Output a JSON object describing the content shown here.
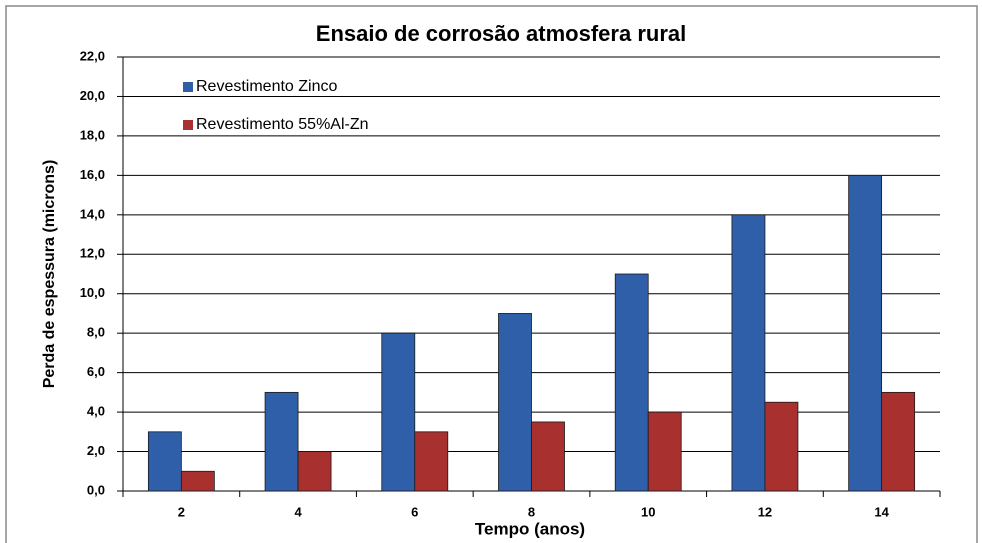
{
  "chart_data": {
    "type": "bar",
    "title": "Ensaio de corrosão atmosfera rural",
    "x_label": "Tempo (anos)",
    "y_label": "Perda de espessura (microns)",
    "categories": [
      "2",
      "4",
      "6",
      "8",
      "10",
      "12",
      "14"
    ],
    "series": [
      {
        "name": "Revestimento Zinco",
        "color": "#2e5fa8",
        "values": [
          3,
          5,
          8,
          9,
          11,
          14,
          16
        ]
      },
      {
        "name": "Revestimento 55%Al-Zn",
        "color": "#a8302e",
        "values": [
          1,
          2,
          3,
          3.5,
          4,
          4.5,
          5
        ]
      }
    ],
    "ylim": [
      0,
      22
    ],
    "yticks": [
      {
        "value": 0,
        "label": "0,0"
      },
      {
        "value": 2,
        "label": "2,0"
      },
      {
        "value": 4,
        "label": "4,0"
      },
      {
        "value": 6,
        "label": "6,0"
      },
      {
        "value": 8,
        "label": "8,0"
      },
      {
        "value": 10,
        "label": "10,0"
      },
      {
        "value": 12,
        "label": "12,0"
      },
      {
        "value": 14,
        "label": "14,0"
      },
      {
        "value": 16,
        "label": "16,0"
      },
      {
        "value": 18,
        "label": "18,0"
      },
      {
        "value": 20,
        "label": "20,0"
      },
      {
        "value": 22,
        "label": "22,0"
      }
    ],
    "grid": true,
    "legend": "top-left"
  }
}
